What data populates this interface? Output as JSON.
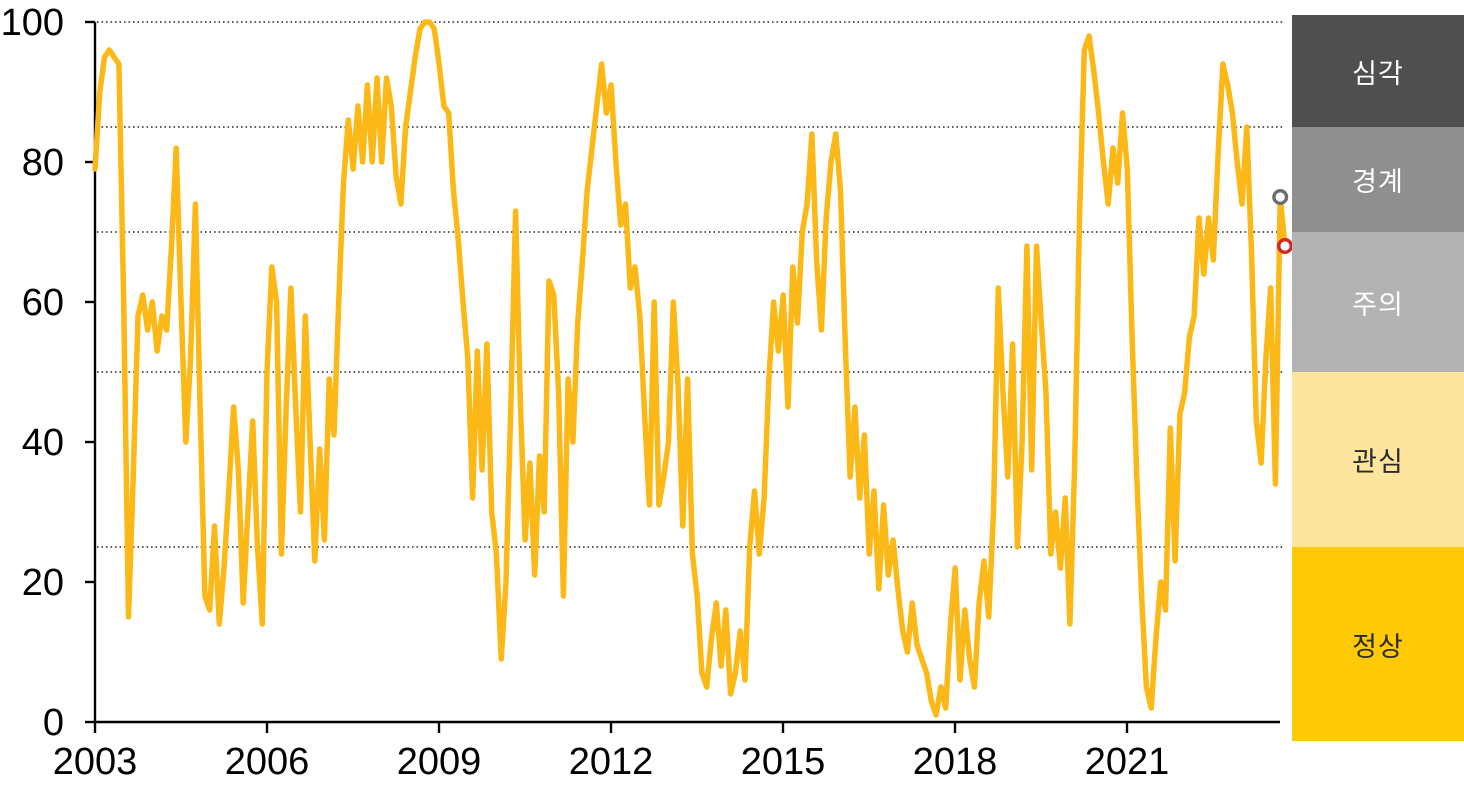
{
  "chart_data": {
    "type": "line",
    "title": "",
    "xlabel": "",
    "ylabel": "",
    "ylim": [
      0,
      100
    ],
    "x_axis": {
      "start_year": 2003,
      "months_per_point": 1,
      "tick_years": [
        2003,
        2006,
        2009,
        2012,
        2015,
        2018,
        2021
      ]
    },
    "y_axis": {
      "ticks": [
        0,
        20,
        40,
        60,
        80,
        100
      ]
    },
    "grid_levels": [
      100,
      85,
      70,
      50,
      25
    ],
    "grid_style": "dotted",
    "series": [
      {
        "name": "stress-index",
        "color": "#FBB817",
        "values": [
          79,
          90,
          95,
          96,
          95,
          94,
          60,
          15,
          35,
          58,
          61,
          56,
          60,
          53,
          58,
          56,
          68,
          82,
          60,
          40,
          52,
          74,
          45,
          18,
          16,
          28,
          14,
          22,
          33,
          45,
          36,
          17,
          30,
          43,
          25,
          14,
          50,
          65,
          60,
          24,
          45,
          62,
          45,
          30,
          58,
          40,
          23,
          39,
          26,
          49,
          41,
          60,
          77,
          86,
          79,
          88,
          80,
          91,
          80,
          92,
          80,
          92,
          88,
          78,
          74,
          85,
          90,
          95,
          99,
          100,
          100,
          99,
          94,
          88,
          87,
          76,
          69,
          60,
          52,
          32,
          53,
          36,
          54,
          30,
          24,
          9,
          20,
          45,
          73,
          46,
          26,
          37,
          21,
          38,
          30,
          63,
          61,
          47,
          18,
          49,
          40,
          57,
          66,
          76,
          82,
          88,
          94,
          87,
          91,
          80,
          71,
          74,
          62,
          65,
          58,
          44,
          31,
          60,
          31,
          35,
          40,
          60,
          48,
          28,
          49,
          24,
          18,
          7,
          5,
          12,
          17,
          8,
          16,
          4,
          7,
          13,
          6,
          25,
          33,
          24,
          32,
          49,
          60,
          53,
          61,
          45,
          65,
          57,
          70,
          74,
          84,
          66,
          56,
          72,
          80,
          84,
          76,
          54,
          35,
          45,
          32,
          41,
          24,
          33,
          19,
          31,
          21,
          26,
          19,
          13,
          10,
          17,
          11,
          9,
          7,
          3,
          1,
          5,
          2,
          14,
          22,
          6,
          16,
          9,
          5,
          17,
          23,
          15,
          30,
          62,
          47,
          35,
          54,
          25,
          40,
          68,
          36,
          68,
          57,
          47,
          24,
          30,
          22,
          32,
          14,
          37,
          72,
          96,
          98,
          93,
          87,
          80,
          74,
          82,
          77,
          87,
          79,
          55,
          35,
          18,
          5,
          2,
          12,
          20,
          16,
          42,
          23,
          44,
          47,
          55,
          58,
          72,
          64,
          72,
          66,
          81,
          94,
          91,
          87,
          80,
          74,
          85,
          67,
          43,
          37,
          52,
          62,
          34,
          75,
          68
        ]
      }
    ],
    "end_markers": [
      {
        "name": "previous-month-marker",
        "index_from_end": 2,
        "value": 75,
        "color": "#6D6D6D"
      },
      {
        "name": "latest-month-marker",
        "index_from_end": 1,
        "value": 68,
        "color": "#D2281E"
      }
    ],
    "zones": [
      {
        "key": "severe",
        "label": "심각",
        "from": 85,
        "to": 100,
        "color": "#4F4F4F",
        "text_color": "#FFFFFF"
      },
      {
        "key": "alert",
        "label": "경계",
        "from": 70,
        "to": 85,
        "color": "#8F8F8F",
        "text_color": "#FFFFFF"
      },
      {
        "key": "caution",
        "label": "주의",
        "from": 50,
        "to": 70,
        "color": "#B3B3B3",
        "text_color": "#FFFFFF"
      },
      {
        "key": "interest",
        "label": "관심",
        "from": 25,
        "to": 50,
        "color": "#FDE59D",
        "text_color": "#2B2B2B"
      },
      {
        "key": "normal",
        "label": "정상",
        "from": 0,
        "to": 25,
        "color": "#FFCA05",
        "text_color": "#2B2B2B"
      }
    ],
    "colors": {
      "axis": "#000000",
      "grid": "#2A2A2A",
      "marker_fill": "#FFFFFF"
    }
  }
}
